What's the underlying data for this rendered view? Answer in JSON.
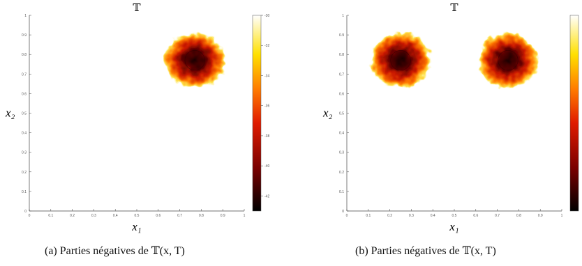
{
  "chart_data": [
    {
      "type": "heatmap",
      "title": "𝕋",
      "xlabel": "x₁",
      "ylabel": "x₂",
      "xlim": [
        0,
        1
      ],
      "ylim": [
        0,
        1
      ],
      "x_ticks": [
        "0",
        "0.1",
        "0.2",
        "0.3",
        "0.4",
        "0.5",
        "0.6",
        "0.7",
        "0.8",
        "0.9",
        "1"
      ],
      "y_ticks": [
        "0",
        "0.1",
        "0.2",
        "0.3",
        "0.4",
        "0.5",
        "0.6",
        "0.7",
        "0.8",
        "0.9",
        "1"
      ],
      "colorbar": {
        "ticks": [
          "-30",
          "-32",
          "-34",
          "-36",
          "-38",
          "-40",
          "-42"
        ],
        "range": [
          -43,
          -30
        ]
      },
      "blobs": [
        {
          "center": [
            0.77,
            0.77
          ],
          "radius": 0.12
        }
      ],
      "caption": "(a) Parties négatives de 𝕋(x, T)"
    },
    {
      "type": "heatmap",
      "title": "𝕋",
      "xlabel": "x₁",
      "ylabel": "x₂",
      "xlim": [
        0,
        1
      ],
      "ylim": [
        0,
        1
      ],
      "x_ticks": [
        "0",
        "0.1",
        "0.2",
        "0.3",
        "0.4",
        "0.5",
        "0.6",
        "0.7",
        "0.8",
        "0.9",
        "1"
      ],
      "y_ticks": [
        "0",
        "0.1",
        "0.2",
        "0.3",
        "0.4",
        "0.5",
        "0.6",
        "0.7",
        "0.8",
        "0.9",
        "1"
      ],
      "colorbar": {
        "ticks": [],
        "range": [
          -43,
          -30
        ]
      },
      "blobs": [
        {
          "center": [
            0.25,
            0.77
          ],
          "radius": 0.12
        },
        {
          "center": [
            0.75,
            0.77
          ],
          "radius": 0.12
        }
      ],
      "caption": "(b) Parties négatives de 𝕋(x, T)"
    }
  ],
  "colors": {
    "hot_dark": "#1a0000",
    "hot_red": "#cc1a00",
    "hot_orange": "#ff7a00",
    "hot_yellow": "#ffe24a",
    "hot_white": "#fffff0"
  }
}
